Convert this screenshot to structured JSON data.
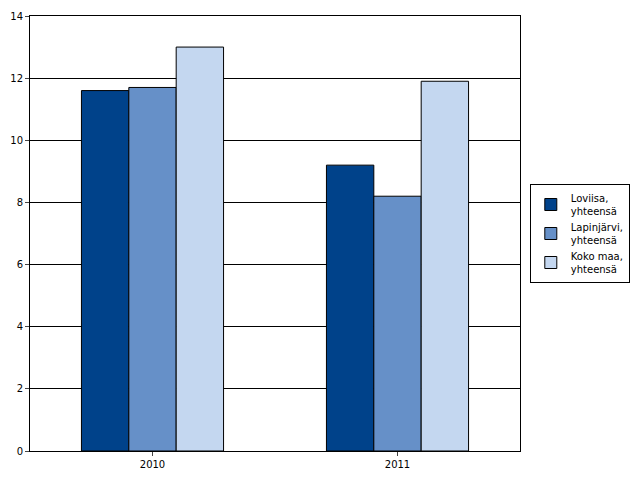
{
  "chart_data": {
    "type": "bar",
    "categories": [
      "2010",
      "2011"
    ],
    "series": [
      {
        "name": "Loviisa, yhteensä",
        "color": "#00428a",
        "values": [
          11.6,
          9.2
        ]
      },
      {
        "name": "Lapinjärvi, yhteensä",
        "color": "#6690c8",
        "values": [
          11.7,
          8.2
        ]
      },
      {
        "name": "Koko maa, yhteensä",
        "color": "#c4d7f0",
        "values": [
          13.0,
          11.9
        ]
      }
    ],
    "ylim": [
      0,
      14
    ],
    "yticks": [
      0,
      2,
      4,
      6,
      8,
      10,
      12,
      14
    ],
    "grid": true,
    "legend": "right"
  }
}
